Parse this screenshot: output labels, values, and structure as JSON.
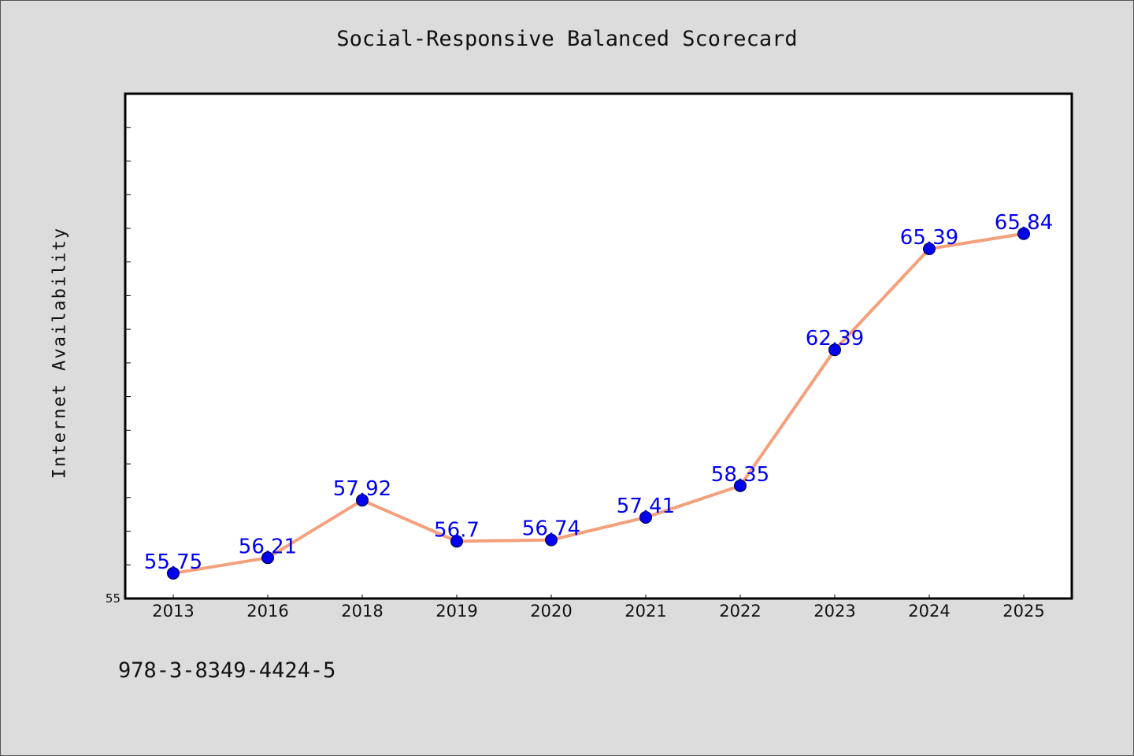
{
  "chart_data": {
    "type": "line",
    "title": "Social-Responsive Balanced Scorecard",
    "xlabel": "",
    "ylabel": "Internet Availability",
    "categories": [
      "2013",
      "2016",
      "2018",
      "2019",
      "2020",
      "2021",
      "2022",
      "2023",
      "2024",
      "2025"
    ],
    "series": [
      {
        "values": [
          55.75,
          56.21,
          57.92,
          56.7,
          56.74,
          57.41,
          58.35,
          62.39,
          65.39,
          65.84
        ]
      }
    ],
    "data_labels": [
      "55.75",
      "56.21",
      "57.92",
      "56.7",
      "56.74",
      "57.41",
      "58.35",
      "62.39",
      "65.39",
      "65.84"
    ],
    "ylim": [
      55,
      70
    ],
    "ytick_labels": [
      "55"
    ],
    "grid": false,
    "legend": "none",
    "line_color": "#f4a07c",
    "marker_color": "#0000ee",
    "label_color": "#0000ee"
  },
  "footer": {
    "code": "978-3-8349-4424-5"
  }
}
